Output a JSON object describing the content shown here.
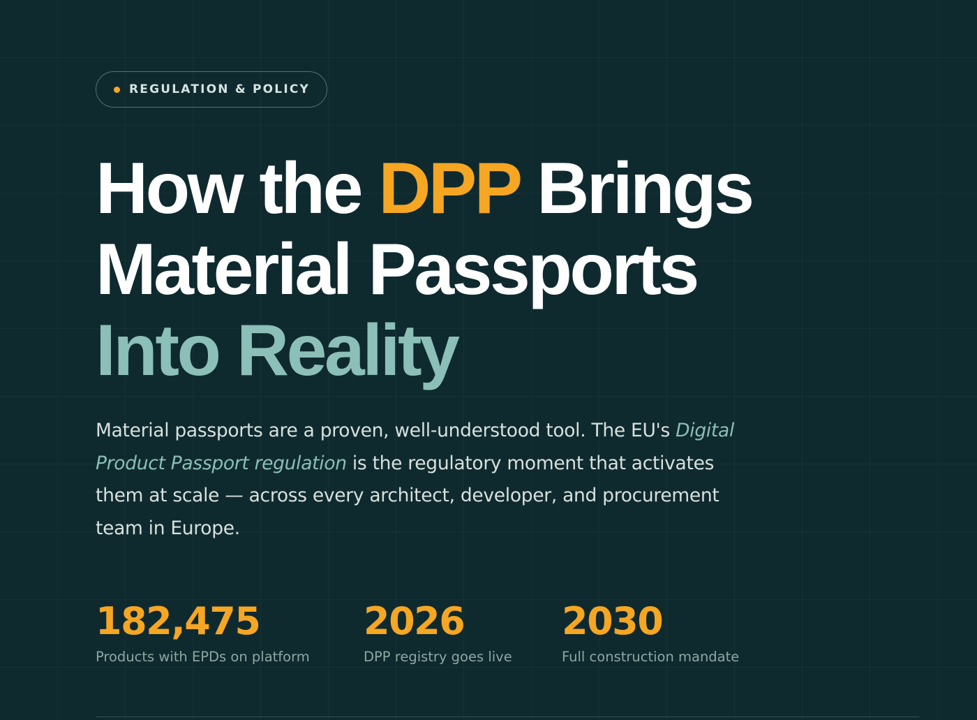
{
  "colors": {
    "background": "#0f2a2e",
    "accent": "#f5a623",
    "teal": "#8bbfb8",
    "white": "#ffffff"
  },
  "badge": {
    "dot_icon": "dot-icon",
    "label": "REGULATION & POLICY"
  },
  "headline": {
    "part1": "How the ",
    "accent": "DPP",
    "part2": " Brings",
    "line2": "Material Passports",
    "line3": "Into Reality"
  },
  "intro": {
    "text_before": "Material passports are a proven, well-understood tool. The EU's ",
    "emphasis": "Digital Product Passport regulation",
    "text_after": " is the regulatory moment that activates them at scale — across every architect, developer, and procurement team in Europe."
  },
  "stats": [
    {
      "value": "182,475",
      "label": "Products with EPDs on platform"
    },
    {
      "value": "2026",
      "label": "DPP registry goes live"
    },
    {
      "value": "2030",
      "label": "Full construction mandate"
    }
  ]
}
